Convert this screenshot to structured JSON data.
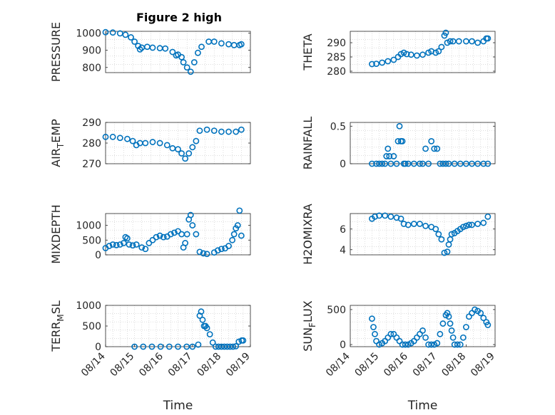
{
  "figure": {
    "title": "Figure 2 high"
  },
  "chart_data": [
    {
      "id": "pressure",
      "type": "scatter",
      "title": "Figure 2 high",
      "ylabel": "PRESSURE",
      "ylabel_sub": "",
      "ylabel_tail": "",
      "xlabel": "",
      "xlim": [
        15,
        19
      ],
      "ylim": [
        770,
        1010
      ],
      "yticks": [
        800,
        900,
        1000
      ],
      "ytick_labels": [
        "800",
        "900",
        "1000"
      ],
      "xticks": [],
      "xtick_labels": [],
      "grid": true,
      "color": "#0072BD",
      "x": [
        15.0,
        15.2,
        15.4,
        15.55,
        15.7,
        15.8,
        15.9,
        15.95,
        16.0,
        16.15,
        16.3,
        16.5,
        16.65,
        16.85,
        16.95,
        17.0,
        17.1,
        17.15,
        17.25,
        17.35,
        17.45,
        17.55,
        17.65,
        17.85,
        18.0,
        18.2,
        18.4,
        18.55,
        18.7,
        18.75
      ],
      "y": [
        1005,
        1003,
        998,
        990,
        975,
        950,
        925,
        905,
        915,
        920,
        915,
        912,
        910,
        890,
        870,
        875,
        860,
        830,
        800,
        775,
        830,
        885,
        920,
        950,
        950,
        940,
        935,
        930,
        930,
        935
      ]
    },
    {
      "id": "theta",
      "type": "scatter",
      "title": "",
      "ylabel": "THETA",
      "ylabel_sub": "",
      "ylabel_tail": "",
      "xlabel": "",
      "xlim": [
        14,
        19
      ],
      "ylim": [
        279.5,
        294
      ],
      "yticks": [
        280,
        285,
        290
      ],
      "ytick_labels": [
        "280",
        "285",
        "290"
      ],
      "xticks": [],
      "xtick_labels": [],
      "grid": true,
      "color": "#0072BD",
      "x": [
        14.75,
        14.9,
        15.1,
        15.3,
        15.5,
        15.65,
        15.75,
        15.85,
        15.95,
        16.1,
        16.3,
        16.5,
        16.7,
        16.8,
        16.95,
        17.05,
        17.15,
        17.25,
        17.3,
        17.35,
        17.45,
        17.55,
        17.75,
        18.0,
        18.2,
        18.4,
        18.6,
        18.7,
        18.75
      ],
      "y": [
        282.5,
        282.6,
        283.0,
        283.5,
        284.0,
        285.0,
        286.0,
        286.5,
        286.0,
        285.8,
        285.5,
        285.8,
        286.5,
        287.0,
        286.5,
        287.0,
        288.5,
        292.5,
        293.5,
        290.0,
        290.5,
        290.5,
        290.5,
        290.5,
        290.5,
        290.0,
        290.5,
        291.5,
        291.5
      ]
    },
    {
      "id": "air_temp",
      "type": "scatter",
      "title": "",
      "ylabel": "AIR",
      "ylabel_sub": "T",
      "ylabel_tail": "EMP",
      "xlabel": "",
      "xlim": [
        15,
        19
      ],
      "ylim": [
        270,
        290
      ],
      "yticks": [
        270,
        280,
        290
      ],
      "ytick_labels": [
        "270",
        "280",
        "290"
      ],
      "xticks": [],
      "xtick_labels": [],
      "grid": true,
      "color": "#0072BD",
      "x": [
        15.0,
        15.2,
        15.4,
        15.6,
        15.75,
        15.85,
        15.95,
        16.1,
        16.3,
        16.5,
        16.7,
        16.85,
        17.0,
        17.1,
        17.2,
        17.3,
        17.4,
        17.5,
        17.6,
        17.8,
        18.0,
        18.2,
        18.4,
        18.6,
        18.75
      ],
      "y": [
        283,
        283,
        282.5,
        282,
        281,
        279,
        280,
        280,
        280.5,
        280,
        279,
        277.5,
        277,
        275,
        272.5,
        275,
        278,
        281,
        286,
        286.5,
        286,
        285.5,
        285.5,
        285.5,
        286.5
      ]
    },
    {
      "id": "rainfall",
      "type": "scatter",
      "title": "",
      "ylabel": "RAINFALL",
      "ylabel_sub": "",
      "ylabel_tail": "",
      "xlabel": "",
      "xlim": [
        14,
        19
      ],
      "ylim": [
        0,
        0.55
      ],
      "yticks": [
        0,
        0.5
      ],
      "ytick_labels": [
        "0",
        "0.5"
      ],
      "xticks": [],
      "xtick_labels": [],
      "grid": true,
      "color": "#0072BD",
      "x": [
        14.75,
        14.9,
        15.0,
        15.1,
        15.2,
        15.25,
        15.3,
        15.35,
        15.4,
        15.5,
        15.6,
        15.65,
        15.7,
        15.75,
        15.8,
        15.85,
        15.9,
        16.0,
        16.2,
        16.4,
        16.5,
        16.6,
        16.7,
        16.8,
        16.9,
        17.0,
        17.1,
        17.2,
        17.3,
        17.4,
        17.6,
        17.8,
        18.0,
        18.2,
        18.4,
        18.6,
        18.75
      ],
      "y": [
        0,
        0,
        0,
        0,
        0,
        0.1,
        0.2,
        0.1,
        0,
        0.1,
        0,
        0.3,
        0.5,
        0.3,
        0.3,
        0,
        0,
        0,
        0,
        0,
        0,
        0.2,
        0,
        0.3,
        0.2,
        0.2,
        0,
        0,
        0,
        0,
        0,
        0,
        0,
        0,
        0,
        0,
        0
      ]
    },
    {
      "id": "mixdepth",
      "type": "scatter",
      "title": "",
      "ylabel": "MIXDEPTH",
      "ylabel_sub": "",
      "ylabel_tail": "",
      "xlabel": "",
      "xlim": [
        15,
        19
      ],
      "ylim": [
        0,
        1400
      ],
      "yticks": [
        0,
        500,
        1000
      ],
      "ytick_labels": [
        "0",
        "500",
        "1000"
      ],
      "xticks": [],
      "xtick_labels": [],
      "grid": true,
      "color": "#0072BD",
      "x": [
        15.0,
        15.1,
        15.2,
        15.3,
        15.4,
        15.5,
        15.55,
        15.6,
        15.65,
        15.75,
        15.85,
        16.0,
        16.1,
        16.2,
        16.3,
        16.4,
        16.5,
        16.6,
        16.7,
        16.8,
        16.9,
        17.0,
        17.1,
        17.15,
        17.2,
        17.25,
        17.3,
        17.35,
        17.4,
        17.5,
        17.6,
        17.7,
        17.8,
        18.0,
        18.1,
        18.2,
        18.3,
        18.4,
        18.5,
        18.55,
        18.6,
        18.65,
        18.7,
        18.75
      ],
      "y": [
        230,
        300,
        350,
        330,
        350,
        400,
        600,
        560,
        350,
        320,
        350,
        250,
        200,
        400,
        500,
        600,
        650,
        600,
        620,
        700,
        750,
        800,
        700,
        250,
        400,
        700,
        1200,
        1350,
        1000,
        700,
        100,
        50,
        30,
        80,
        150,
        200,
        220,
        300,
        500,
        700,
        900,
        1000,
        1500,
        650
      ]
    },
    {
      "id": "h2omixra",
      "type": "scatter",
      "title": "",
      "ylabel": "H2OMIXRA",
      "ylabel_sub": "",
      "ylabel_tail": "",
      "xlabel": "",
      "xlim": [
        14,
        19
      ],
      "ylim": [
        3.5,
        7.5
      ],
      "yticks": [
        4,
        6
      ],
      "ytick_labels": [
        "4",
        "6"
      ],
      "xticks": [],
      "xtick_labels": [],
      "grid": true,
      "color": "#0072BD",
      "x": [
        14.75,
        14.85,
        15.0,
        15.2,
        15.4,
        15.6,
        15.75,
        15.85,
        16.0,
        16.2,
        16.4,
        16.6,
        16.8,
        16.95,
        17.05,
        17.15,
        17.25,
        17.35,
        17.4,
        17.45,
        17.5,
        17.6,
        17.7,
        17.8,
        17.9,
        18.0,
        18.1,
        18.2,
        18.4,
        18.6,
        18.75
      ],
      "y": [
        7.0,
        7.2,
        7.3,
        7.3,
        7.2,
        7.1,
        7.0,
        6.5,
        6.4,
        6.5,
        6.5,
        6.3,
        6.2,
        6.0,
        5.5,
        5.0,
        3.7,
        3.8,
        4.5,
        5.0,
        5.5,
        5.6,
        5.8,
        6.0,
        6.2,
        6.3,
        6.4,
        6.4,
        6.5,
        6.6,
        7.2
      ]
    },
    {
      "id": "terr_msl",
      "type": "scatter",
      "title": "",
      "ylabel": "TERR",
      "ylabel_sub": "M",
      "ylabel_tail": "SL",
      "xlabel": "Time",
      "xlim": [
        14,
        19
      ],
      "ylim": [
        0,
        1000
      ],
      "yticks": [
        0,
        500,
        1000
      ],
      "ytick_labels": [
        "0",
        "500",
        "1000"
      ],
      "xticks": [
        14,
        15,
        16,
        17,
        18,
        19
      ],
      "xtick_labels": [
        "08/14",
        "08/15",
        "08/16",
        "08/17",
        "08/18",
        "08/19"
      ],
      "grid": true,
      "color": "#0072BD",
      "x": [
        15.0,
        15.3,
        15.6,
        15.9,
        16.2,
        16.5,
        16.8,
        17.0,
        17.2,
        17.25,
        17.3,
        17.35,
        17.4,
        17.45,
        17.5,
        17.6,
        17.7,
        17.8,
        17.9,
        18.0,
        18.1,
        18.2,
        18.3,
        18.4,
        18.5,
        18.6,
        18.7,
        18.75
      ],
      "y": [
        0,
        0,
        0,
        0,
        0,
        0,
        0,
        0,
        50,
        750,
        850,
        650,
        500,
        500,
        450,
        300,
        100,
        0,
        0,
        0,
        0,
        0,
        0,
        0,
        10,
        120,
        150,
        150
      ]
    },
    {
      "id": "sun_flux",
      "type": "scatter",
      "title": "",
      "ylabel": "SUN",
      "ylabel_sub": "F",
      "ylabel_tail": "LUX",
      "xlabel": "Time",
      "xlim": [
        14,
        19
      ],
      "ylim": [
        -30,
        560
      ],
      "yticks": [
        0,
        500
      ],
      "ytick_labels": [
        "0",
        "500"
      ],
      "xticks": [
        14,
        15,
        16,
        17,
        18,
        19
      ],
      "xtick_labels": [
        "08/14",
        "08/15",
        "08/16",
        "08/17",
        "08/18",
        "08/19"
      ],
      "grid": true,
      "color": "#0072BD",
      "x": [
        14.75,
        14.8,
        14.85,
        14.9,
        15.0,
        15.1,
        15.2,
        15.3,
        15.4,
        15.5,
        15.6,
        15.7,
        15.8,
        15.9,
        16.0,
        16.1,
        16.2,
        16.3,
        16.4,
        16.5,
        16.6,
        16.7,
        16.8,
        16.9,
        17.0,
        17.1,
        17.2,
        17.3,
        17.35,
        17.4,
        17.45,
        17.5,
        17.55,
        17.6,
        17.7,
        17.8,
        17.9,
        18.0,
        18.1,
        18.2,
        18.3,
        18.4,
        18.5,
        18.6,
        18.7,
        18.75
      ],
      "y": [
        370,
        250,
        150,
        50,
        0,
        20,
        50,
        100,
        150,
        150,
        100,
        50,
        0,
        0,
        0,
        20,
        50,
        100,
        150,
        200,
        100,
        0,
        0,
        0,
        20,
        150,
        300,
        420,
        450,
        400,
        300,
        200,
        100,
        0,
        0,
        0,
        100,
        250,
        400,
        450,
        500,
        480,
        450,
        380,
        320,
        280
      ]
    }
  ]
}
